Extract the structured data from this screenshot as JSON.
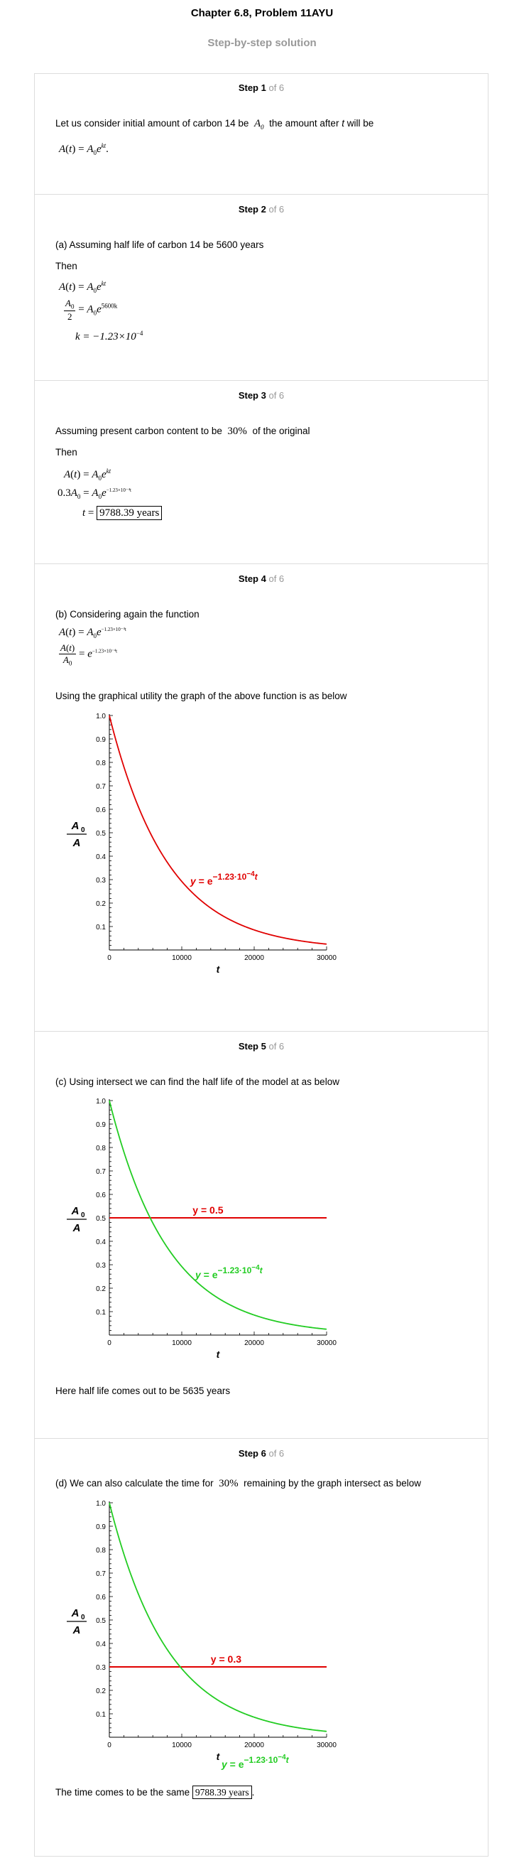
{
  "header": {
    "title": "Chapter 6.8, Problem 11AYU",
    "subtitle": "Step-by-step solution"
  },
  "step_of": "of 6",
  "steps": [
    {
      "label": "Step 1",
      "text1": "Let us consider initial amount of carbon 14 be",
      "text1b": "the amount after",
      "text1c": "t",
      "text1d": "will be"
    },
    {
      "label": "Step 2",
      "text1": "(a) Assuming half life of carbon 14 be 5600 years",
      "text2": "Then",
      "k_value": "k = −1.23×10",
      "k_exp": "−4",
      "exp5600": "5600k"
    },
    {
      "label": "Step 3",
      "text1": "Assuming present carbon content to be",
      "percent": "30%",
      "text1b": "of the original",
      "text2": "Then",
      "coef": "0.3",
      "answer": "9788.39 years",
      "exp_small": "−1.23×10⁻⁴t"
    },
    {
      "label": "Step 4",
      "text1": "(b) Considering again the function",
      "text2": "Using the graphical utility the graph of the above function is as below"
    },
    {
      "label": "Step 5",
      "text1": "(c) Using intersect we can find the half life of the model at as below",
      "text2": "Here half life comes out to be 5635 years"
    },
    {
      "label": "Step 6",
      "text1": "(d) We can also calculate the time for",
      "percent": "30%",
      "text1b": "remaining by the graph intersect as below",
      "text2": "The time comes to be the same",
      "answer": "9788.39 years",
      "text2b": "."
    }
  ],
  "chart_data": [
    {
      "type": "line",
      "xlim": [
        0,
        30000
      ],
      "ylim": [
        0,
        1
      ],
      "xticks": [
        "0",
        "10000",
        "20000",
        "30000"
      ],
      "yticks": [
        "0.1",
        "0.2",
        "0.3",
        "0.4",
        "0.5",
        "0.6",
        "0.7",
        "0.8",
        "0.9",
        "1.0"
      ],
      "xlabel": "t",
      "series": [
        {
          "name": "y = e^(-1.23·10^-4 t)",
          "k": 0.000123,
          "color": "#e00000"
        }
      ],
      "hline": null
    },
    {
      "type": "line",
      "xlim": [
        0,
        30000
      ],
      "ylim": [
        0,
        1
      ],
      "xticks": [
        "0",
        "10000",
        "20000",
        "30000"
      ],
      "yticks": [
        "0.1",
        "0.2",
        "0.3",
        "0.4",
        "0.5",
        "0.6",
        "0.7",
        "0.8",
        "0.9",
        "1.0"
      ],
      "xlabel": "t",
      "series": [
        {
          "name": "y = e^(-1.23·10^-4 t)",
          "k": 0.000123,
          "color": "#22cc22"
        }
      ],
      "hline": {
        "value": 0.5,
        "label": "y = 0.5",
        "color": "#e00000"
      }
    },
    {
      "type": "line",
      "xlim": [
        0,
        30000
      ],
      "ylim": [
        0,
        1
      ],
      "xticks": [
        "0",
        "10000",
        "20000",
        "30000"
      ],
      "yticks": [
        "0.1",
        "0.2",
        "0.3",
        "0.4",
        "0.5",
        "0.6",
        "0.7",
        "0.8",
        "0.9",
        "1.0"
      ],
      "xlabel": "t",
      "series": [
        {
          "name": "y = e^(-1.23·10^-4 t)",
          "k": 0.000123,
          "color": "#22cc22"
        }
      ],
      "hline": {
        "value": 0.3,
        "label": "y = 0.3",
        "color": "#e00000"
      }
    }
  ],
  "curve_label": {
    "y": "y",
    "eq": "= e",
    "exp": "−1.23·10",
    "exp2": "−4",
    "t": "t"
  },
  "ylabel_num": "A",
  "ylabel_sub": "0",
  "ylabel_den": "A"
}
